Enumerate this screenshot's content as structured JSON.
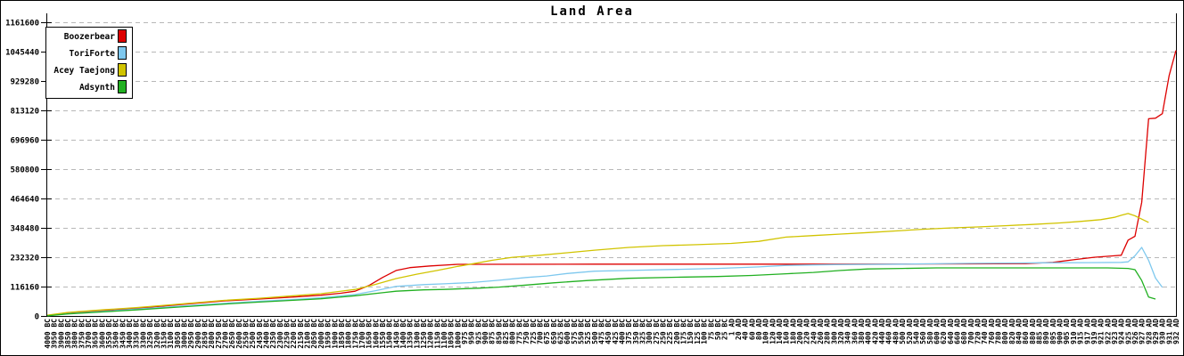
{
  "figure": {
    "title": "Land Area",
    "background": "#ffffff",
    "border_color": "#000000",
    "grid_color": "#b8b8b8"
  },
  "chart_data": {
    "type": "line",
    "title": "Land Area",
    "xlabel": "",
    "ylabel": "",
    "ylim": [
      0,
      1161600
    ],
    "y_ticks": [
      0,
      116160,
      232320,
      348480,
      464640,
      580800,
      696960,
      813120,
      929280,
      1045440,
      1161600
    ],
    "grid": "horizontal-dashed",
    "legend_position": "top-left",
    "categories": [
      "4000 BC",
      "3950 BC",
      "3900 BC",
      "3850 BC",
      "3800 BC",
      "3750 BC",
      "3700 BC",
      "3650 BC",
      "3600 BC",
      "3550 BC",
      "3500 BC",
      "3450 BC",
      "3400 BC",
      "3350 BC",
      "3300 BC",
      "3250 BC",
      "3200 BC",
      "3150 BC",
      "3100 BC",
      "3050 BC",
      "3000 BC",
      "2950 BC",
      "2900 BC",
      "2850 BC",
      "2800 BC",
      "2750 BC",
      "2700 BC",
      "2650 BC",
      "2600 BC",
      "2550 BC",
      "2500 BC",
      "2450 BC",
      "2400 BC",
      "2350 BC",
      "2300 BC",
      "2250 BC",
      "2200 BC",
      "2150 BC",
      "2100 BC",
      "2050 BC",
      "2000 BC",
      "1950 BC",
      "1900 BC",
      "1850 BC",
      "1800 BC",
      "1750 BC",
      "1700 BC",
      "1650 BC",
      "1600 BC",
      "1550 BC",
      "1500 BC",
      "1450 BC",
      "1400 BC",
      "1350 BC",
      "1300 BC",
      "1250 BC",
      "1200 BC",
      "1150 BC",
      "1100 BC",
      "1050 BC",
      "1000 BC",
      "975 BC",
      "950 BC",
      "925 BC",
      "900 BC",
      "875 BC",
      "850 BC",
      "825 BC",
      "800 BC",
      "775 BC",
      "750 BC",
      "725 BC",
      "700 BC",
      "675 BC",
      "650 BC",
      "625 BC",
      "600 BC",
      "575 BC",
      "550 BC",
      "525 BC",
      "500 BC",
      "475 BC",
      "450 BC",
      "425 BC",
      "400 BC",
      "375 BC",
      "350 BC",
      "325 BC",
      "300 BC",
      "275 BC",
      "250 BC",
      "225 BC",
      "200 BC",
      "175 BC",
      "150 BC",
      "125 BC",
      "100 BC",
      "75 BC",
      "50 BC",
      "25 BC",
      "1 AD",
      "20 AD",
      "40 AD",
      "60 AD",
      "80 AD",
      "100 AD",
      "120 AD",
      "140 AD",
      "160 AD",
      "180 AD",
      "200 AD",
      "220 AD",
      "240 AD",
      "260 AD",
      "280 AD",
      "300 AD",
      "320 AD",
      "340 AD",
      "360 AD",
      "380 AD",
      "400 AD",
      "420 AD",
      "440 AD",
      "460 AD",
      "480 AD",
      "500 AD",
      "520 AD",
      "540 AD",
      "560 AD",
      "580 AD",
      "600 AD",
      "620 AD",
      "640 AD",
      "660 AD",
      "680 AD",
      "700 AD",
      "720 AD",
      "740 AD",
      "760 AD",
      "780 AD",
      "800 AD",
      "820 AD",
      "840 AD",
      "860 AD",
      "880 AD",
      "885 AD",
      "890 AD",
      "895 AD",
      "900 AD",
      "905 AD",
      "910 AD",
      "915 AD",
      "917 AD",
      "919 AD",
      "921 AD",
      "922 AD",
      "923 AD",
      "924 AD",
      "925 AD",
      "926 AD",
      "927 AD",
      "928 AD",
      "929 AD",
      "930 AD",
      "931 AD",
      "932 AD"
    ],
    "series": [
      {
        "name": "Boozerbear",
        "color": "#dd0000",
        "points": [
          [
            0,
            2000
          ],
          [
            3,
            12000
          ],
          [
            8,
            22000
          ],
          [
            13,
            30000
          ],
          [
            19,
            44000
          ],
          [
            26,
            60000
          ],
          [
            31,
            67000
          ],
          [
            36,
            75000
          ],
          [
            40,
            82000
          ],
          [
            43,
            90000
          ],
          [
            45,
            98000
          ],
          [
            47,
            120000
          ],
          [
            49,
            152000
          ],
          [
            51,
            180000
          ],
          [
            53,
            191000
          ],
          [
            56,
            198000
          ],
          [
            60,
            204000
          ],
          [
            80,
            205000
          ],
          [
            110,
            205000
          ],
          [
            135,
            206000
          ],
          [
            143,
            207000
          ],
          [
            147,
            212000
          ],
          [
            150,
            222000
          ],
          [
            153,
            232000
          ],
          [
            156,
            238000
          ],
          [
            157,
            240000
          ],
          [
            158,
            300000
          ],
          [
            159,
            315000
          ],
          [
            160,
            450000
          ],
          [
            161,
            780000
          ],
          [
            162,
            782000
          ],
          [
            163,
            800000
          ],
          [
            164,
            950000
          ],
          [
            165,
            1050000
          ]
        ]
      },
      {
        "name": "ToriForte",
        "color": "#7ec8ee",
        "points": [
          [
            0,
            1000
          ],
          [
            3,
            9000
          ],
          [
            8,
            18000
          ],
          [
            13,
            27000
          ],
          [
            19,
            38000
          ],
          [
            26,
            50000
          ],
          [
            31,
            58000
          ],
          [
            36,
            65000
          ],
          [
            40,
            72000
          ],
          [
            45,
            85000
          ],
          [
            48,
            100000
          ],
          [
            51,
            117000
          ],
          [
            55,
            124000
          ],
          [
            58,
            127000
          ],
          [
            62,
            132000
          ],
          [
            66,
            141000
          ],
          [
            70,
            152000
          ],
          [
            73,
            158000
          ],
          [
            76,
            168000
          ],
          [
            80,
            177000
          ],
          [
            85,
            180000
          ],
          [
            92,
            184000
          ],
          [
            98,
            188000
          ],
          [
            104,
            194000
          ],
          [
            108,
            200000
          ],
          [
            115,
            203000
          ],
          [
            125,
            205000
          ],
          [
            135,
            208000
          ],
          [
            145,
            210000
          ],
          [
            152,
            211000
          ],
          [
            157,
            212000
          ],
          [
            158,
            214000
          ],
          [
            159,
            238000
          ],
          [
            160,
            271000
          ],
          [
            161,
            220000
          ],
          [
            162,
            150000
          ],
          [
            163,
            113000
          ]
        ]
      },
      {
        "name": "Acey Taejong",
        "color": "#d1c400",
        "points": [
          [
            0,
            3000
          ],
          [
            3,
            14000
          ],
          [
            8,
            24000
          ],
          [
            13,
            33000
          ],
          [
            19,
            46000
          ],
          [
            26,
            62000
          ],
          [
            31,
            70000
          ],
          [
            36,
            80000
          ],
          [
            40,
            88000
          ],
          [
            45,
            105000
          ],
          [
            48,
            125000
          ],
          [
            51,
            148000
          ],
          [
            54,
            165000
          ],
          [
            57,
            180000
          ],
          [
            60,
            196000
          ],
          [
            63,
            210000
          ],
          [
            65,
            220000
          ],
          [
            68,
            232000
          ],
          [
            72,
            240000
          ],
          [
            76,
            250000
          ],
          [
            80,
            260000
          ],
          [
            85,
            271000
          ],
          [
            90,
            278000
          ],
          [
            95,
            282000
          ],
          [
            100,
            287000
          ],
          [
            104,
            295000
          ],
          [
            108,
            312000
          ],
          [
            112,
            318000
          ],
          [
            116,
            324000
          ],
          [
            120,
            330000
          ],
          [
            124,
            336000
          ],
          [
            128,
            343000
          ],
          [
            132,
            348000
          ],
          [
            136,
            352000
          ],
          [
            140,
            357000
          ],
          [
            144,
            362000
          ],
          [
            148,
            368000
          ],
          [
            151,
            374000
          ],
          [
            154,
            381000
          ],
          [
            156,
            390000
          ],
          [
            157,
            398000
          ],
          [
            158,
            405000
          ],
          [
            159,
            396000
          ],
          [
            160,
            383000
          ],
          [
            161,
            370000
          ]
        ]
      },
      {
        "name": "Adsynth",
        "color": "#21b021",
        "points": [
          [
            0,
            500
          ],
          [
            3,
            8000
          ],
          [
            8,
            16000
          ],
          [
            13,
            24000
          ],
          [
            19,
            35000
          ],
          [
            26,
            47000
          ],
          [
            31,
            55000
          ],
          [
            36,
            62000
          ],
          [
            40,
            68000
          ],
          [
            45,
            80000
          ],
          [
            49,
            92000
          ],
          [
            51,
            98000
          ],
          [
            55,
            103000
          ],
          [
            58,
            105000
          ],
          [
            63,
            110000
          ],
          [
            66,
            114000
          ],
          [
            70,
            122000
          ],
          [
            74,
            131000
          ],
          [
            79,
            140000
          ],
          [
            85,
            149000
          ],
          [
            92,
            153000
          ],
          [
            98,
            156000
          ],
          [
            103,
            160000
          ],
          [
            108,
            167000
          ],
          [
            112,
            172000
          ],
          [
            116,
            180000
          ],
          [
            120,
            186000
          ],
          [
            125,
            188000
          ],
          [
            130,
            190000
          ],
          [
            145,
            190000
          ],
          [
            155,
            190000
          ],
          [
            158,
            188000
          ],
          [
            159,
            183000
          ],
          [
            160,
            140000
          ],
          [
            161,
            75000
          ],
          [
            162,
            67000
          ]
        ]
      }
    ]
  }
}
